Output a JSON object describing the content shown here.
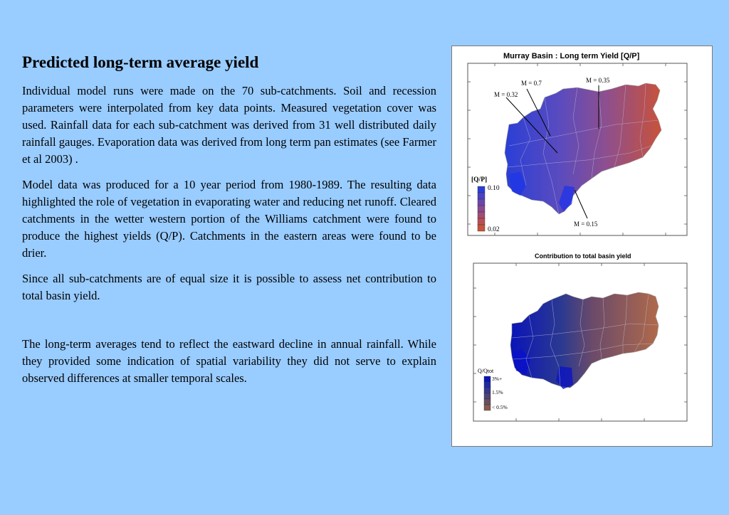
{
  "heading": "Predicted long-term average yield",
  "paragraphs": [
    "Individual model runs were made on the 70 sub-catchments. Soil and recession parameters were interpolated from key data points. Measured vegetation cover was used.  Rainfall data for each sub-catchment was derived from 31 well distributed daily rainfall gauges. Evaporation data was derived from long term pan estimates (see Farmer et al 2003) .",
    "Model data was produced for a 10 year period from 1980-1989.  The resulting data highlighted the role of vegetation in evaporating water and reducing net runoff.  Cleared catchments in the wetter western portion of the Williams catchment were found to produce the highest yields (Q/P). Catchments in the eastern areas were found to be drier.",
    "Since all sub-catchments are of equal size it is possible to assess net contribution to total basin yield.",
    "The long-term averages tend to reflect the eastward decline in annual rainfall. While they provided some indication of spatial variability they did not serve to explain observed differences at smaller temporal scales."
  ],
  "map1": {
    "title": "Murray Basin : Long term Yield [Q/P]",
    "legend_title": "[Q/P]",
    "legend_max": "0.10",
    "legend_min": "0.02",
    "annotations": {
      "m07": "M = 0.7",
      "m035": "M = 0.35",
      "m032": "M = 0.32",
      "m015": "M = 0.15"
    },
    "color_west": "#2a3fd6",
    "color_east": "#c4533a"
  },
  "map2": {
    "title": "Contribution to total basin yield",
    "legend_title": "Q/Qtot",
    "legend_high": "3%+",
    "legend_mid": "1.5%",
    "legend_low": "< 0.5%",
    "color_west": "#0a14b8",
    "color_east": "#a8603f"
  }
}
